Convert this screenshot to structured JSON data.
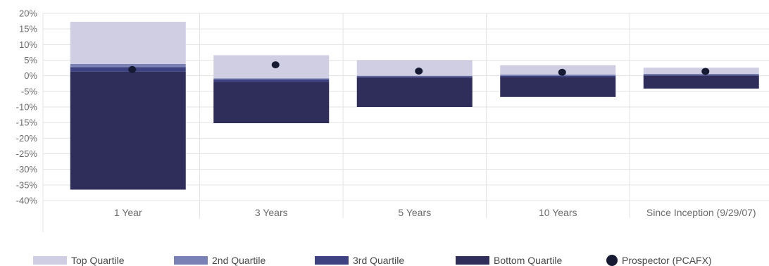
{
  "chart_data": {
    "type": "bar",
    "subtype": "stacked-range-with-marker",
    "categories": [
      "1 Year",
      "3 Years",
      "5 Years",
      "10 Years",
      "Since Inception (9/29/07)"
    ],
    "series": [
      {
        "name": "Bottom Quartile",
        "color": "#2f2d5a",
        "low": [
          -36.5,
          -15.2,
          -10.0,
          -6.8,
          -4.1
        ],
        "high": [
          1.3,
          -2.0,
          -0.6,
          -0.4,
          0.0
        ]
      },
      {
        "name": "3rd Quartile",
        "color": "#3e4280",
        "low": [
          1.3,
          -2.0,
          -0.6,
          -0.4,
          0.0
        ],
        "high": [
          2.8,
          -1.2,
          -0.2,
          0.0,
          0.3
        ]
      },
      {
        "name": "2nd Quartile",
        "color": "#7a82b5",
        "low": [
          2.8,
          -1.2,
          -0.2,
          0.0,
          0.3
        ],
        "high": [
          3.8,
          -0.8,
          0.0,
          0.4,
          0.6
        ]
      },
      {
        "name": "Top Quartile",
        "color": "#d0cee3",
        "low": [
          3.8,
          -0.8,
          0.0,
          0.4,
          0.6
        ],
        "high": [
          17.3,
          6.6,
          5.0,
          3.4,
          2.6
        ]
      }
    ],
    "marker_series": {
      "name": "Prospector (PCAFX)",
      "color": "#161b33",
      "values": [
        2.0,
        3.5,
        1.5,
        1.1,
        1.4
      ]
    },
    "ylim": [
      -40,
      20
    ],
    "yticks": [
      "20%",
      "15%",
      "10%",
      "5%",
      "0%",
      "-5%",
      "-10%",
      "-15%",
      "-20%",
      "-25%",
      "-30%",
      "-35%",
      "-40%"
    ],
    "ytick_values": [
      20,
      15,
      10,
      5,
      0,
      -5,
      -10,
      -15,
      -20,
      -25,
      -30,
      -35,
      -40
    ],
    "grid": true,
    "legend_position": "bottom",
    "legend": [
      "Top Quartile",
      "2nd Quartile",
      "3rd Quartile",
      "Bottom Quartile",
      "Prospector (PCAFX)"
    ],
    "legend_colors": [
      "#d0cee3",
      "#7a82b5",
      "#3e4280",
      "#2f2d5a",
      "#161b33"
    ],
    "title": "",
    "xlabel": "",
    "ylabel": ""
  }
}
